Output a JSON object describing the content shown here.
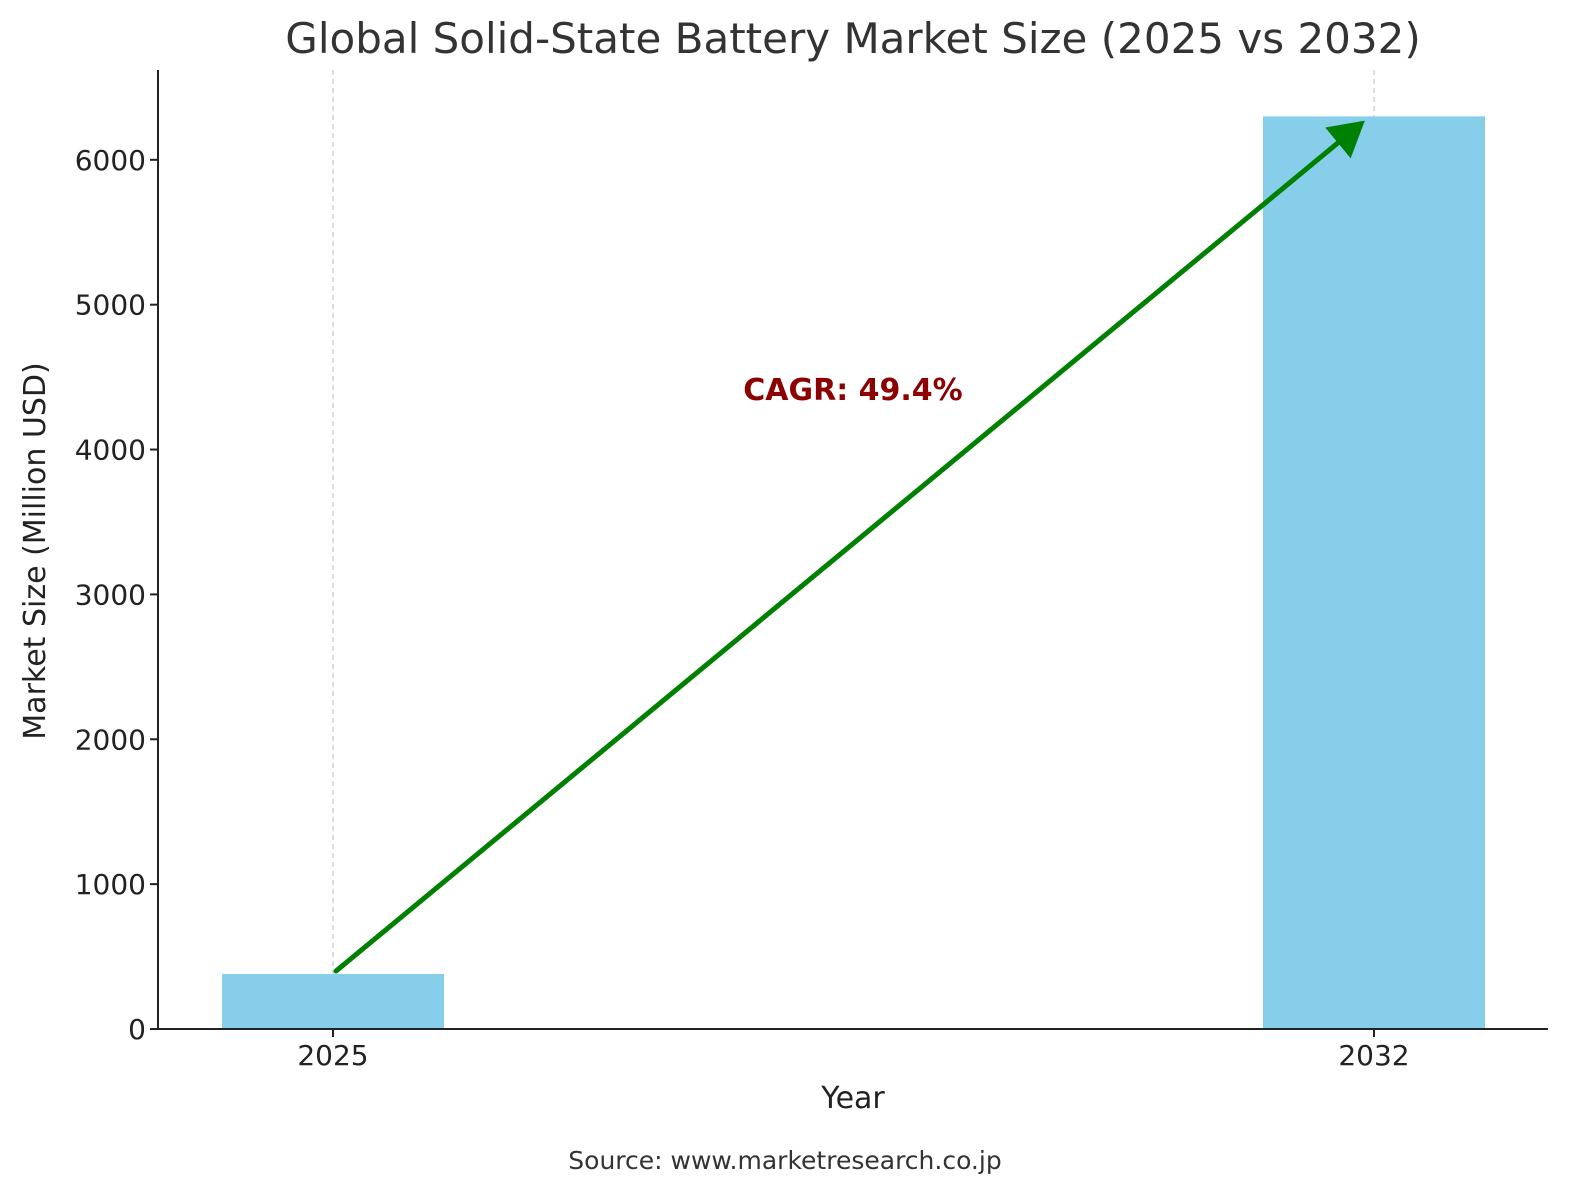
{
  "chart_data": {
    "type": "bar",
    "title": "Global Solid-State Battery Market Size (2025 vs 2032)",
    "xlabel": "Year",
    "ylabel": "Market Size (Million USD)",
    "categories": [
      "2025",
      "2032"
    ],
    "values": [
      380,
      6300
    ],
    "ylim": [
      0,
      6620
    ],
    "yticks": [
      0,
      1000,
      2000,
      3000,
      4000,
      5000,
      6000
    ],
    "grid": "x-dashed",
    "bar_color": "#87CEEB",
    "annotation": {
      "text": "CAGR: 49.4%",
      "color": "#8B0000",
      "arrow_color": "#008000",
      "arrow_from": {
        "category": "2025",
        "value": 400
      },
      "arrow_to": {
        "category": "2032",
        "value": 6290
      }
    },
    "source": "Source: www.marketresearch.co.jp"
  }
}
